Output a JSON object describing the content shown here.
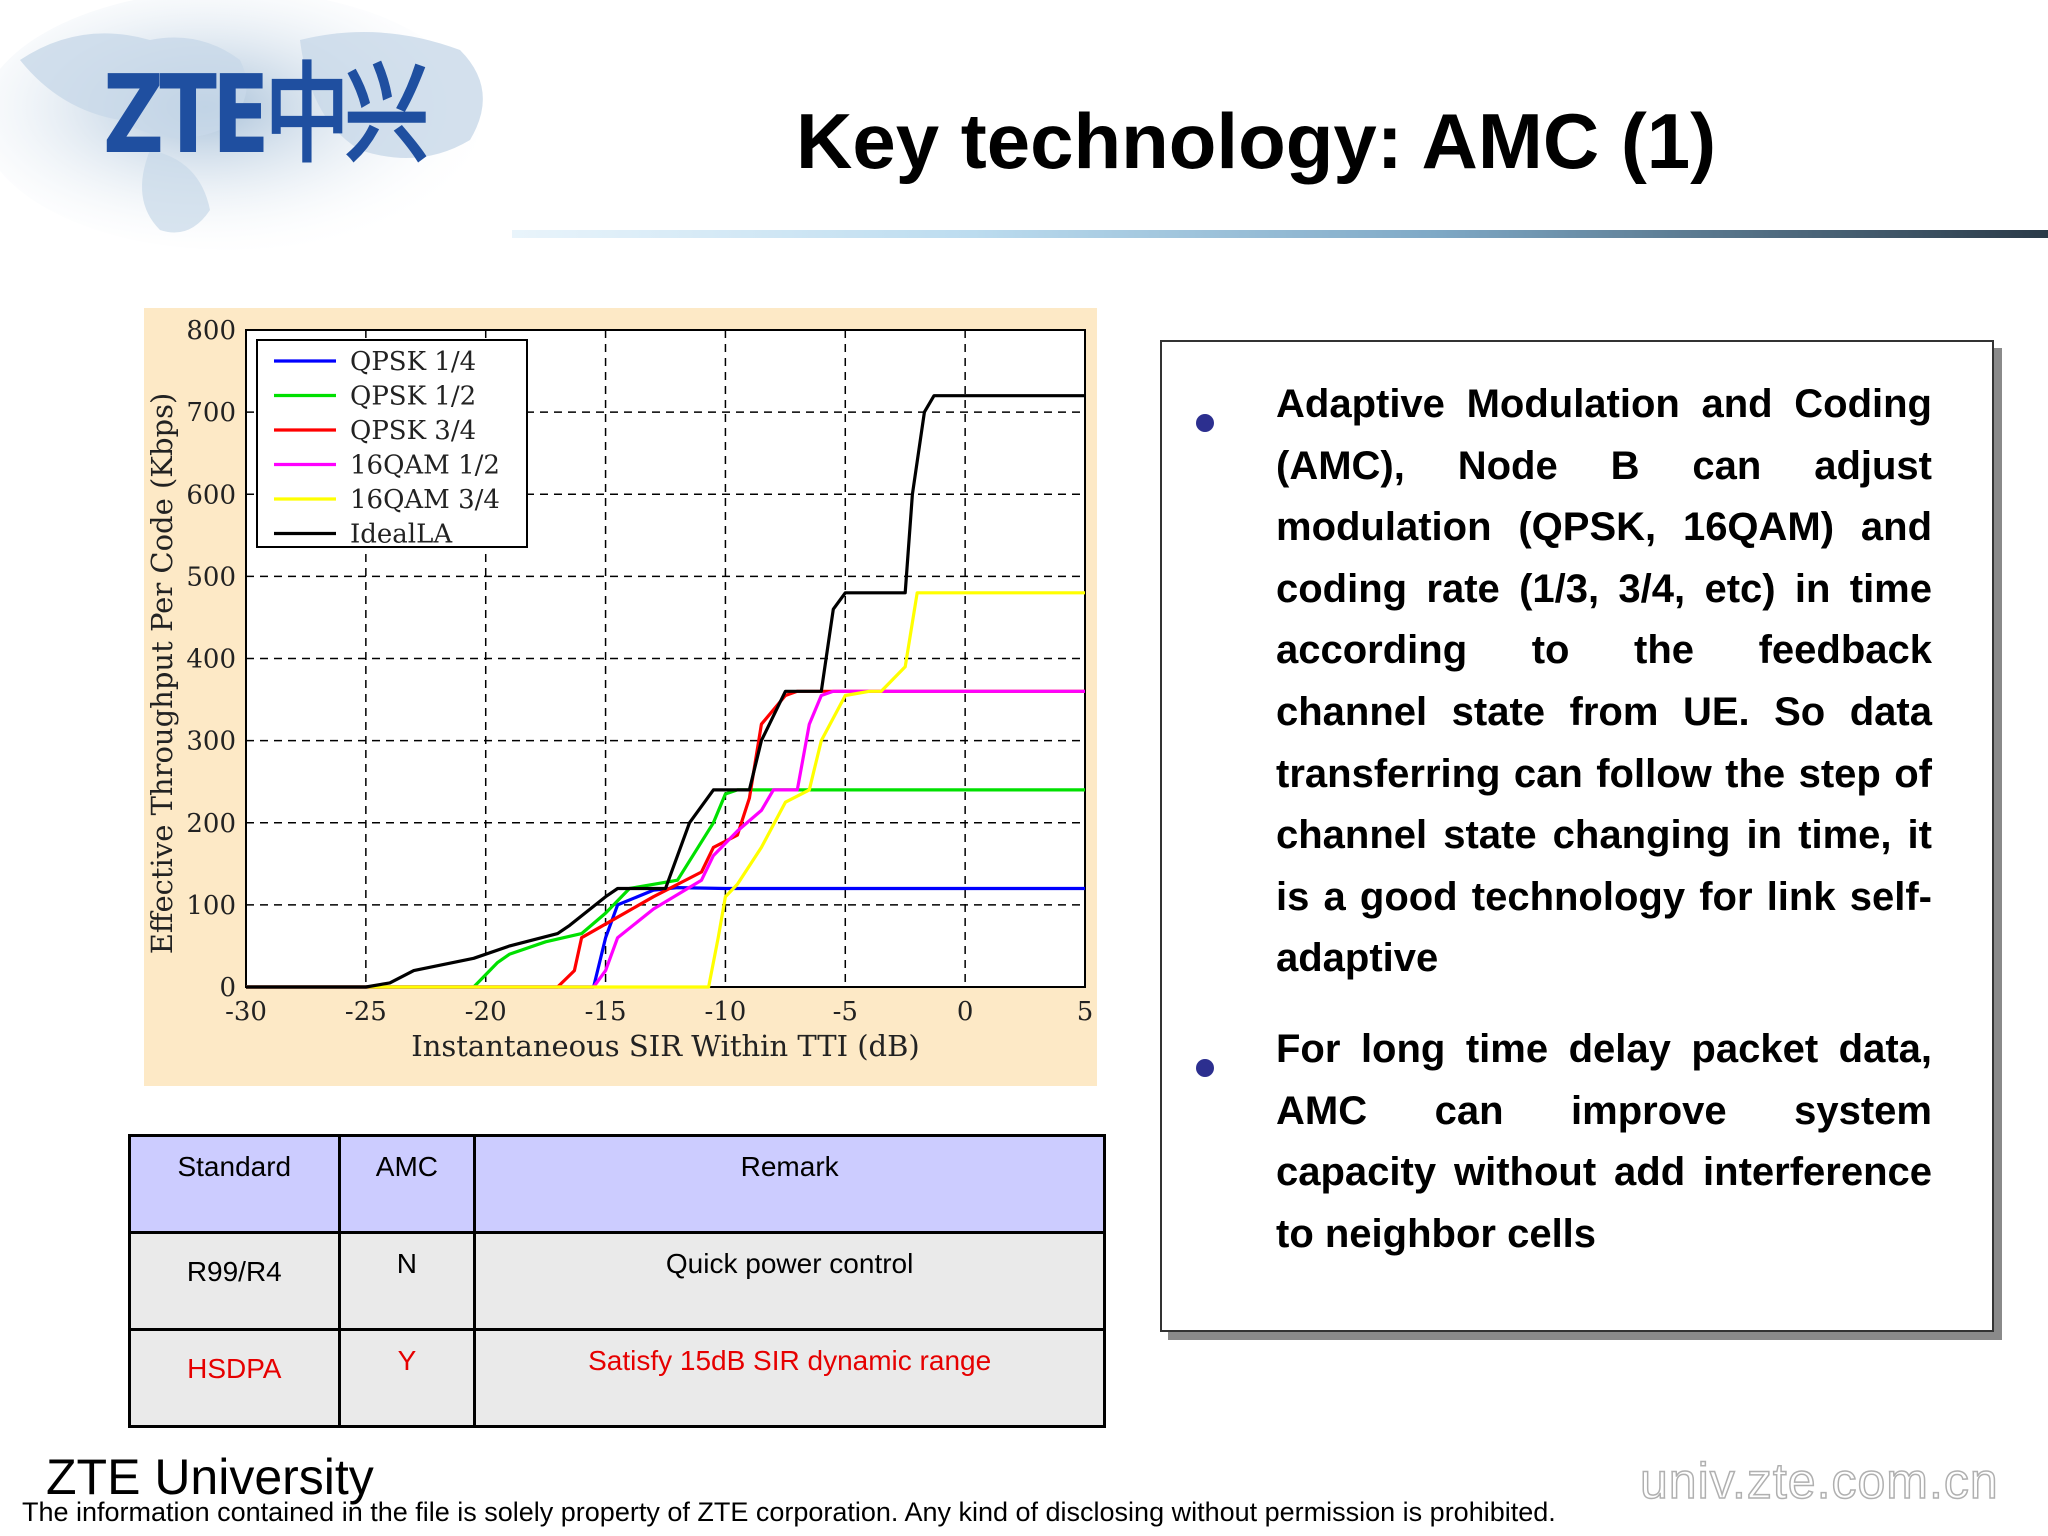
{
  "header": {
    "logo_text": "ZTE中兴",
    "title": "Key technology: AMC (1)"
  },
  "chart_data": {
    "type": "line",
    "xlabel": "Instantaneous SIR Within TTI (dB)",
    "ylabel": "Effective Throughput Per Code (Kbps)",
    "xlim": [
      -30,
      5
    ],
    "ylim": [
      0,
      800
    ],
    "xticks": [
      -30,
      -25,
      -20,
      -15,
      -10,
      -5,
      0,
      5
    ],
    "yticks": [
      0,
      100,
      200,
      300,
      400,
      500,
      600,
      700,
      800
    ],
    "grid": true,
    "legend_position": "top-left",
    "series": [
      {
        "name": "QPSK 1/4",
        "color": "#0000ff",
        "x": [
          -30,
          -15.5,
          -15,
          -14.5,
          -13,
          -12,
          -10,
          5
        ],
        "y": [
          0,
          0,
          60,
          100,
          118,
          121,
          120,
          120
        ]
      },
      {
        "name": "QPSK 1/2",
        "color": "#00e000",
        "x": [
          -30,
          -20.5,
          -19.5,
          -19,
          -17.5,
          -16,
          -15,
          -14,
          -12,
          -10.5,
          -10,
          -9.5,
          5
        ],
        "y": [
          0,
          0,
          30,
          40,
          55,
          65,
          90,
          120,
          130,
          200,
          235,
          240,
          240
        ]
      },
      {
        "name": "QPSK 3/4",
        "color": "#ff0000",
        "x": [
          -30,
          -17,
          -16.3,
          -16,
          -14.5,
          -13,
          -11,
          -10.5,
          -9.5,
          -9,
          -8.5,
          -7.5,
          -7,
          5
        ],
        "y": [
          0,
          0,
          20,
          60,
          85,
          110,
          140,
          170,
          185,
          230,
          320,
          355,
          360,
          360
        ]
      },
      {
        "name": "16QAM 1/2",
        "color": "#ff00ff",
        "x": [
          -30,
          -15.5,
          -15,
          -14.5,
          -13,
          -11,
          -10.5,
          -9.5,
          -8.5,
          -8,
          -7,
          -6.5,
          -6,
          -5.5,
          -5,
          5
        ],
        "y": [
          0,
          0,
          20,
          60,
          95,
          130,
          160,
          190,
          215,
          240,
          240,
          320,
          355,
          360,
          360,
          360
        ]
      },
      {
        "name": "16QAM 3/4",
        "color": "#ffff00",
        "x": [
          -30,
          -10.7,
          -10.3,
          -10,
          -9.5,
          -8.5,
          -7.5,
          -6.5,
          -6,
          -5,
          -4,
          -3.5,
          -2.5,
          -2,
          5
        ],
        "y": [
          0,
          0,
          60,
          110,
          125,
          170,
          225,
          240,
          300,
          355,
          360,
          360,
          390,
          480,
          480
        ]
      },
      {
        "name": "IdealLA",
        "color": "#000000",
        "x": [
          -30,
          -25,
          -24,
          -23,
          -20.5,
          -19,
          -17,
          -16.5,
          -15,
          -14.5,
          -12.5,
          -11.5,
          -10.5,
          -10,
          -9,
          -8.5,
          -7.5,
          -7,
          -6,
          -5.5,
          -5,
          -2.5,
          -2.2,
          -1.7,
          -1.3,
          5
        ],
        "y": [
          0,
          0,
          5,
          20,
          35,
          50,
          65,
          75,
          110,
          120,
          120,
          200,
          240,
          240,
          240,
          300,
          360,
          360,
          360,
          460,
          480,
          480,
          600,
          700,
          720,
          720
        ]
      }
    ]
  },
  "table": {
    "headers": [
      "Standard",
      "AMC",
      "Remark"
    ],
    "rows": [
      {
        "standard": "R99/R4",
        "amc": "N",
        "remark": "Quick power control"
      },
      {
        "standard": "HSDPA",
        "amc": "Y",
        "remark": "Satisfy 15dB SIR dynamic range"
      }
    ]
  },
  "textbox": {
    "bullet1": "Adaptive Modulation and Coding (AMC), Node B can adjust modulation (QPSK, 16QAM) and coding rate (1/3, 3/4, etc) in time according to the feedback channel state from UE. So data transferring can follow the step of channel state changing in time, it is a good technology for link self-adaptive",
    "bullet2": "For long time delay packet data, AMC can improve system capacity without add interference to neighbor cells"
  },
  "footer": {
    "university": "ZTE University",
    "note": "The information contained in the file is solely property of ZTE corporation. Any kind of disclosing without permission is prohibited.",
    "url": "univ.zte.com.cn"
  }
}
